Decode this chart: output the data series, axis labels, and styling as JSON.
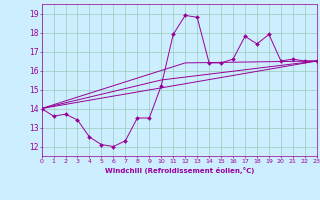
{
  "xlabel": "Windchill (Refroidissement éolien,°C)",
  "ylabel": "",
  "xlim": [
    0,
    23
  ],
  "ylim": [
    11.5,
    19.5
  ],
  "bg_color": "#cceeff",
  "line_color": "#990099",
  "grid_color": "#99ccbb",
  "line1_x": [
    0,
    1,
    2,
    3,
    4,
    5,
    6,
    7,
    8,
    9,
    10,
    11,
    12,
    13,
    14,
    15,
    16,
    17,
    18,
    19,
    20,
    21,
    22,
    23
  ],
  "line1_y": [
    14.0,
    13.6,
    13.7,
    13.4,
    12.5,
    12.1,
    12.0,
    12.3,
    13.5,
    13.5,
    15.2,
    17.9,
    18.9,
    18.8,
    16.4,
    16.4,
    16.6,
    17.8,
    17.4,
    17.9,
    16.5,
    16.6,
    16.5,
    16.5
  ],
  "line2_x": [
    0,
    23
  ],
  "line2_y": [
    14.0,
    16.5
  ],
  "line3_x": [
    0,
    10,
    23
  ],
  "line3_y": [
    14.0,
    15.5,
    16.5
  ],
  "line4_x": [
    0,
    12,
    23
  ],
  "line4_y": [
    14.0,
    16.4,
    16.5
  ],
  "yticks": [
    12,
    13,
    14,
    15,
    16,
    17,
    18,
    19
  ],
  "xticks": [
    0,
    1,
    2,
    3,
    4,
    5,
    6,
    7,
    8,
    9,
    10,
    11,
    12,
    13,
    14,
    15,
    16,
    17,
    18,
    19,
    20,
    21,
    22,
    23
  ]
}
